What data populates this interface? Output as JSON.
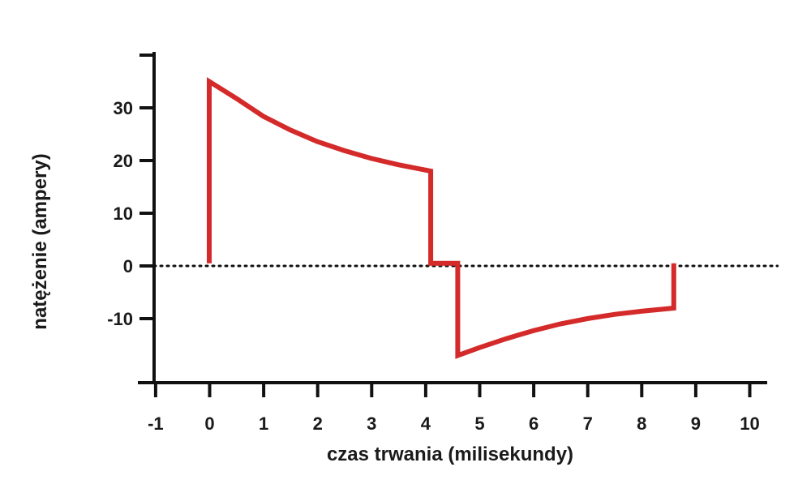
{
  "chart_data": {
    "type": "line",
    "xlabel": "czas trwania (milisekundy)",
    "ylabel": "natężenie (ampery)",
    "xlim": [
      -1,
      10.4
    ],
    "ylim": [
      -22,
      40
    ],
    "x_ticks": [
      -1,
      0,
      1,
      2,
      3,
      4,
      5,
      6,
      7,
      8,
      9,
      10
    ],
    "x_tick_labels": [
      "-1",
      "0",
      "1",
      "2",
      "3",
      "4",
      "5",
      "6",
      "7",
      "8",
      "9",
      "10"
    ],
    "y_ticks": [
      -10,
      0,
      10,
      20,
      30
    ],
    "y_tick_labels": [
      "-10",
      "0",
      "10",
      "20",
      "30"
    ],
    "y_minor_ticks": [
      40
    ],
    "grid": false,
    "baseline": {
      "y": 0,
      "style": "dotted",
      "color": "#111111"
    },
    "series": [
      {
        "color": "#d42a2a",
        "x": [
          0,
          0,
          0.5,
          1,
          1.5,
          2,
          2.5,
          3,
          3.5,
          4.1,
          4.1,
          4.6,
          4.6,
          5,
          5.5,
          6,
          6.5,
          7,
          7.5,
          8,
          8.6,
          8.6
        ],
        "y": [
          0.5,
          35,
          31.8,
          28.4,
          25.8,
          23.6,
          21.9,
          20.4,
          19.2,
          18,
          0.5,
          0.5,
          -17,
          -15.5,
          -13.8,
          -12.3,
          -11,
          -10,
          -9.2,
          -8.6,
          -8,
          0.5
        ]
      }
    ]
  }
}
